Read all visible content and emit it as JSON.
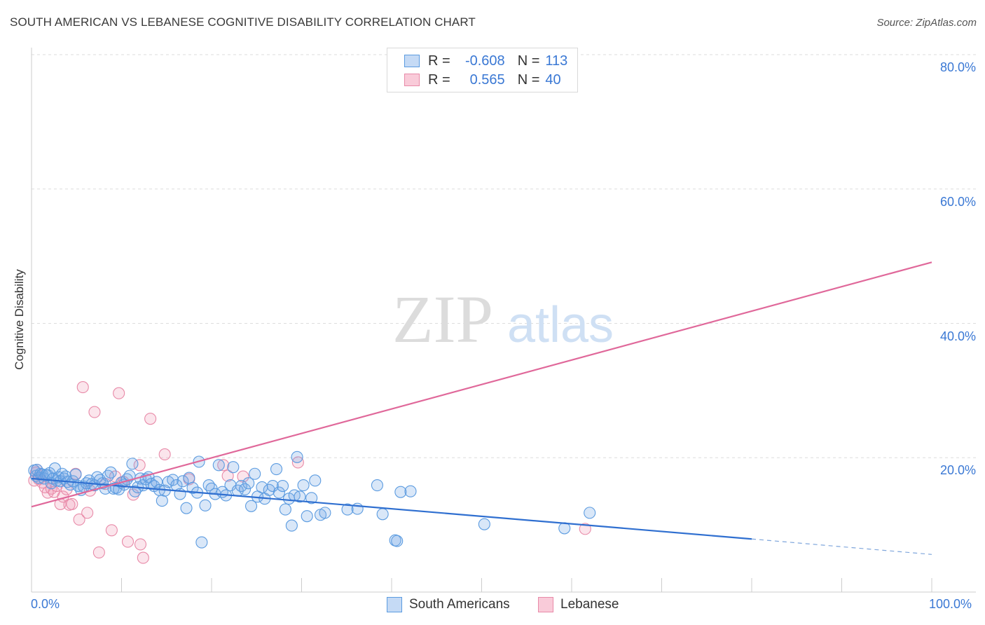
{
  "title": "SOUTH AMERICAN VS LEBANESE COGNITIVE DISABILITY CORRELATION CHART",
  "source": "Source: ZipAtlas.com",
  "watermark": {
    "zip": "ZIP",
    "atlas": "atlas"
  },
  "legend": {
    "rows": [
      {
        "r_label": "R =",
        "r_value": "-0.608",
        "n_label": "N =",
        "n_value": "113",
        "color": "#5b9be0",
        "fill": "#c5daf5"
      },
      {
        "r_label": "R =",
        "r_value": "0.565",
        "n_label": "N =",
        "n_value": "40",
        "color": "#e88aa8",
        "fill": "#f9cbd9"
      }
    ]
  },
  "bottom_legend": {
    "south": "South Americans",
    "lebanese": "Lebanese"
  },
  "axis": {
    "x_min_label": "0.0%",
    "x_max_label": "100.0%",
    "y_ticks": [
      "80.0%",
      "60.0%",
      "40.0%",
      "20.0%"
    ],
    "ylabel": "Cognitive Disability"
  },
  "chart_data": {
    "type": "scatter",
    "title": "SOUTH AMERICAN VS LEBANESE COGNITIVE DISABILITY CORRELATION CHART",
    "xlabel": "",
    "ylabel": "Cognitive Disability",
    "xlim": [
      0,
      100
    ],
    "ylim": [
      0,
      80
    ],
    "grid": true,
    "legend_position": "top-center",
    "series": [
      {
        "name": "South Americans",
        "color": "#5b9be0",
        "points": [
          [
            0.3,
            18.1
          ],
          [
            0.5,
            17.3
          ],
          [
            0.6,
            18.2
          ],
          [
            0.8,
            17.0
          ],
          [
            1.0,
            17.6
          ],
          [
            1.2,
            17.5
          ],
          [
            1.4,
            16.9
          ],
          [
            1.6,
            17.4
          ],
          [
            1.8,
            17.4
          ],
          [
            2.0,
            17.7
          ],
          [
            2.2,
            16.2
          ],
          [
            2.4,
            16.9
          ],
          [
            2.6,
            18.4
          ],
          [
            2.8,
            16.6
          ],
          [
            3.0,
            17.1
          ],
          [
            3.2,
            16.5
          ],
          [
            3.4,
            17.6
          ],
          [
            3.6,
            16.9
          ],
          [
            3.8,
            17.2
          ],
          [
            4.0,
            16.4
          ],
          [
            4.3,
            16.0
          ],
          [
            4.6,
            16.5
          ],
          [
            4.9,
            17.5
          ],
          [
            5.2,
            15.8
          ],
          [
            5.5,
            15.2
          ],
          [
            5.8,
            15.7
          ],
          [
            6.1,
            16.2
          ],
          [
            6.4,
            16.6
          ],
          [
            6.7,
            16.1
          ],
          [
            7.0,
            15.9
          ],
          [
            7.3,
            17.1
          ],
          [
            7.6,
            16.7
          ],
          [
            7.9,
            16.2
          ],
          [
            8.2,
            15.4
          ],
          [
            8.5,
            17.3
          ],
          [
            8.8,
            17.8
          ],
          [
            9.1,
            15.4
          ],
          [
            9.4,
            15.5
          ],
          [
            9.7,
            15.3
          ],
          [
            10.0,
            16.3
          ],
          [
            10.3,
            16.0
          ],
          [
            10.6,
            16.8
          ],
          [
            10.9,
            17.3
          ],
          [
            11.2,
            19.1
          ],
          [
            11.5,
            15.0
          ],
          [
            11.8,
            15.6
          ],
          [
            12.1,
            16.9
          ],
          [
            12.4,
            15.9
          ],
          [
            12.7,
            16.8
          ],
          [
            13.0,
            17.1
          ],
          [
            13.3,
            16.1
          ],
          [
            13.6,
            15.8
          ],
          [
            13.9,
            16.4
          ],
          [
            14.2,
            15.2
          ],
          [
            14.5,
            13.6
          ],
          [
            14.8,
            15.1
          ],
          [
            15.2,
            16.4
          ],
          [
            15.7,
            16.7
          ],
          [
            16.1,
            15.9
          ],
          [
            16.5,
            14.6
          ],
          [
            16.8,
            16.5
          ],
          [
            17.2,
            12.5
          ],
          [
            17.5,
            17.0
          ],
          [
            17.9,
            15.5
          ],
          [
            18.4,
            14.8
          ],
          [
            18.6,
            19.4
          ],
          [
            18.9,
            7.4
          ],
          [
            19.3,
            12.9
          ],
          [
            19.7,
            15.9
          ],
          [
            20.0,
            15.4
          ],
          [
            20.4,
            14.6
          ],
          [
            20.8,
            18.9
          ],
          [
            21.2,
            14.9
          ],
          [
            21.6,
            14.4
          ],
          [
            22.1,
            15.9
          ],
          [
            22.4,
            18.6
          ],
          [
            22.9,
            15.1
          ],
          [
            23.3,
            15.8
          ],
          [
            23.7,
            15.3
          ],
          [
            24.1,
            16.2
          ],
          [
            24.4,
            12.8
          ],
          [
            24.8,
            17.6
          ],
          [
            25.1,
            14.2
          ],
          [
            25.6,
            15.6
          ],
          [
            25.9,
            13.9
          ],
          [
            26.4,
            15.2
          ],
          [
            26.8,
            15.8
          ],
          [
            27.2,
            18.3
          ],
          [
            27.5,
            14.8
          ],
          [
            27.9,
            15.8
          ],
          [
            28.2,
            12.3
          ],
          [
            28.6,
            13.9
          ],
          [
            28.9,
            9.9
          ],
          [
            29.2,
            14.4
          ],
          [
            29.8,
            14.2
          ],
          [
            29.5,
            20.1
          ],
          [
            30.2,
            15.9
          ],
          [
            30.6,
            11.3
          ],
          [
            31.1,
            14.0
          ],
          [
            31.5,
            16.6
          ],
          [
            32.1,
            11.5
          ],
          [
            32.6,
            11.8
          ],
          [
            35.1,
            12.3
          ],
          [
            36.2,
            12.4
          ],
          [
            38.4,
            15.9
          ],
          [
            39.0,
            11.6
          ],
          [
            40.4,
            7.7
          ],
          [
            40.6,
            7.6
          ],
          [
            41.0,
            14.9
          ],
          [
            42.1,
            15.0
          ],
          [
            50.3,
            10.1
          ],
          [
            59.2,
            9.5
          ],
          [
            62.0,
            11.8
          ]
        ]
      },
      {
        "name": "Lebanese",
        "color": "#e88aa8",
        "points": [
          [
            0.3,
            16.6
          ],
          [
            0.5,
            17.8
          ],
          [
            0.6,
            18.2
          ],
          [
            0.8,
            16.8
          ],
          [
            1.2,
            16.3
          ],
          [
            1.5,
            15.6
          ],
          [
            1.8,
            14.8
          ],
          [
            2.2,
            15.4
          ],
          [
            2.5,
            14.9
          ],
          [
            2.8,
            15.8
          ],
          [
            3.2,
            13.1
          ],
          [
            3.5,
            14.2
          ],
          [
            3.9,
            15.3
          ],
          [
            4.2,
            13.0
          ],
          [
            4.5,
            13.1
          ],
          [
            4.9,
            17.6
          ],
          [
            5.3,
            10.8
          ],
          [
            5.7,
            30.5
          ],
          [
            6.2,
            11.8
          ],
          [
            6.5,
            15.1
          ],
          [
            7.0,
            26.8
          ],
          [
            7.5,
            5.9
          ],
          [
            8.2,
            16.1
          ],
          [
            8.9,
            9.2
          ],
          [
            9.3,
            17.2
          ],
          [
            9.7,
            29.6
          ],
          [
            10.2,
            16.4
          ],
          [
            10.7,
            7.5
          ],
          [
            11.3,
            14.5
          ],
          [
            12.0,
            18.9
          ],
          [
            12.4,
            5.1
          ],
          [
            12.1,
            7.1
          ],
          [
            13.2,
            25.8
          ],
          [
            14.8,
            20.5
          ],
          [
            17.5,
            16.8
          ],
          [
            21.3,
            18.9
          ],
          [
            21.8,
            17.3
          ],
          [
            23.5,
            17.2
          ],
          [
            29.6,
            19.3
          ],
          [
            61.5,
            9.4
          ]
        ]
      }
    ],
    "trendlines": [
      {
        "series": "South Americans",
        "x": [
          0,
          80
        ],
        "y": [
          16.9,
          7.9
        ],
        "dashed_extension_to": [
          100,
          5.6
        ]
      },
      {
        "series": "Lebanese",
        "x": [
          0,
          100
        ],
        "y": [
          12.7,
          49.1
        ]
      }
    ]
  }
}
